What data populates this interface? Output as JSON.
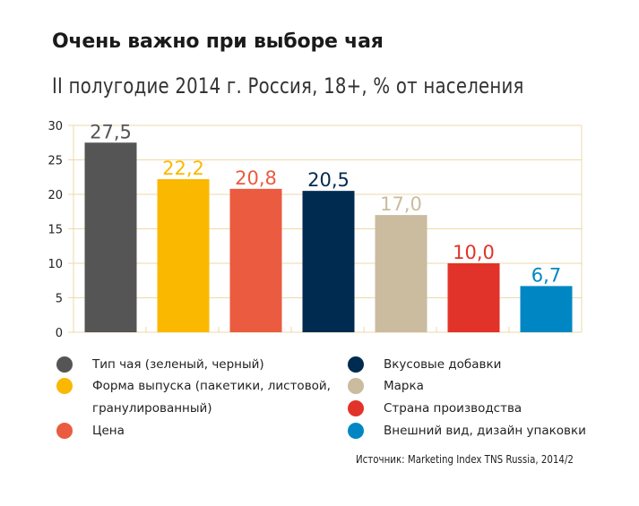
{
  "chart_data": {
    "type": "bar",
    "title": "Очень важно при выборе чая",
    "subtitle": "II полугодие 2014 г. Россия, 18+, % от населения",
    "xlabel": "",
    "ylabel": "",
    "ylim": [
      0,
      30
    ],
    "yticks": [
      0,
      5,
      10,
      15,
      20,
      25,
      30
    ],
    "ytick_labels": [
      "0",
      "5",
      "10",
      "15",
      "20",
      "25",
      "30"
    ],
    "grid": true,
    "categories": [
      "Тип чая (зеленый, черный)",
      "Форма выпуска (пакетики, листовой, гранулированный)",
      "Цена",
      "Вкусовые добавки",
      "Марка",
      "Страна производства",
      "Внешний вид, дизайн упаковки"
    ],
    "values": [
      27.5,
      22.2,
      20.8,
      20.5,
      17.0,
      10.0,
      6.7
    ],
    "value_labels": [
      "27,5",
      "22,2",
      "20,8",
      "20,5",
      "17,0",
      "10,0",
      "6,7"
    ],
    "colors": [
      "#555555",
      "#FBB800",
      "#EA5B40",
      "#002B50",
      "#CBBB9F",
      "#E2332A",
      "#0087C3"
    ],
    "legend_position": "bottom"
  },
  "legend": {
    "items": [
      {
        "label": "Тип чая (зеленый, черный)",
        "color": "#555555"
      },
      {
        "label": "Форма выпуска (пакетики, листовой,",
        "label2": "гранулированный)",
        "color": "#FBB800"
      },
      {
        "label": "Цена",
        "color": "#EA5B40"
      },
      {
        "label": "Вкусовые добавки",
        "color": "#002B50"
      },
      {
        "label": "Марка",
        "color": "#CBBB9F"
      },
      {
        "label": "Страна производства",
        "color": "#E2332A"
      },
      {
        "label": "Внешний вид, дизайн упаковки",
        "color": "#0087C3"
      }
    ]
  },
  "source": "Источник: Marketing Index TNS Russia, 2014/2",
  "grid_color": "#EED9A9"
}
